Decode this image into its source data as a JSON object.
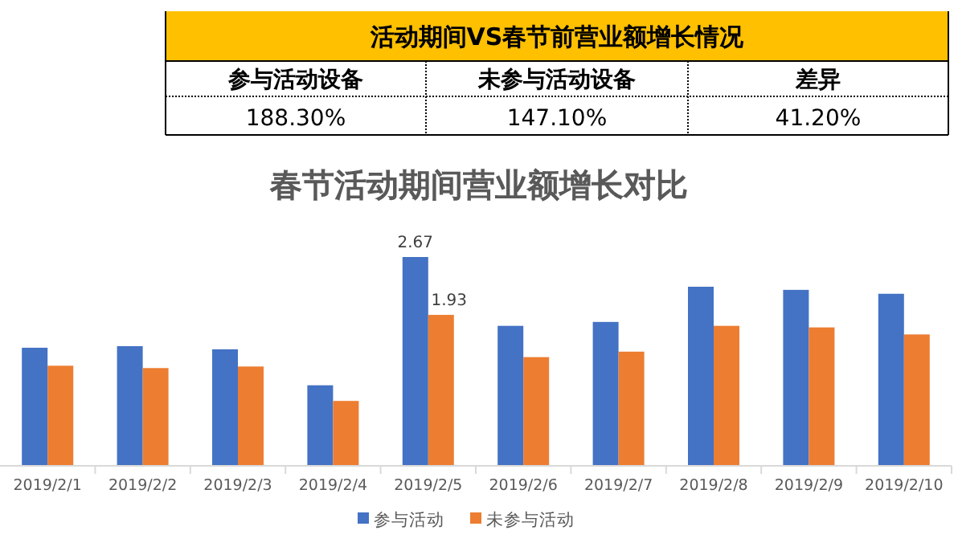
{
  "chart_data": [
    {
      "type": "other",
      "title": "活动期间VS春节前营业额增长情况",
      "annotations": [
        "参与活动设备",
        "未参与活动设备",
        "差异",
        "188.30%",
        "147.10%",
        "41.20%"
      ]
    },
    {
      "type": "bar",
      "title": "春节活动期间营业额增长对比",
      "categories": [
        "2019/2/1",
        "2019/2/2",
        "2019/2/3",
        "2019/2/4",
        "2019/2/5",
        "2019/2/6",
        "2019/2/7",
        "2019/2/8",
        "2019/2/9",
        "2019/2/10"
      ],
      "series": [
        {
          "name": "参与活动",
          "color": "#4472c4",
          "values": [
            1.51,
            1.53,
            1.49,
            1.03,
            2.67,
            1.79,
            1.84,
            2.29,
            2.25,
            2.2
          ],
          "value_labels": [
            null,
            null,
            null,
            null,
            "2.67",
            null,
            null,
            null,
            null,
            null
          ]
        },
        {
          "name": "未参与活动",
          "color": "#ed7d31",
          "values": [
            1.28,
            1.25,
            1.27,
            0.83,
            1.93,
            1.39,
            1.46,
            1.79,
            1.77,
            1.68
          ],
          "value_labels": [
            null,
            null,
            null,
            null,
            "1.93",
            null,
            null,
            null,
            null,
            null
          ]
        }
      ],
      "legend": "bottom"
    }
  ]
}
